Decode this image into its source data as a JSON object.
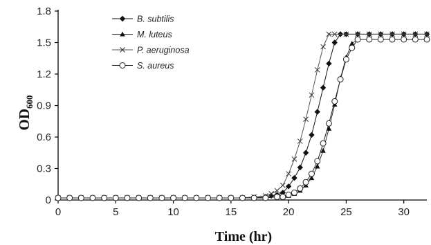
{
  "chart_data": {
    "type": "line",
    "xlabel": "Time (hr)",
    "ylabel_main": "OD",
    "ylabel_sub": "600",
    "xlim": [
      0,
      32
    ],
    "ylim": [
      0,
      1.8
    ],
    "xticks": [
      "0",
      "5",
      "10",
      "15",
      "20",
      "25",
      "30"
    ],
    "yticks": [
      "0",
      "0.3",
      "0.6",
      "0.9",
      "1.2",
      "1.5",
      "1.8"
    ],
    "grid": false,
    "legend_position": "top-left",
    "series": [
      {
        "name": "B. subtilis",
        "marker": "diamond",
        "x": [
          0,
          1,
          2,
          3,
          4,
          5,
          6,
          7,
          8,
          9,
          10,
          11,
          12,
          13,
          14,
          15,
          16,
          17,
          18,
          18.5,
          19,
          19.5,
          20,
          20.5,
          21,
          21.5,
          22,
          22.5,
          23,
          23.5,
          24,
          24.5,
          25,
          26,
          27,
          28,
          29,
          30,
          31,
          32
        ],
        "y": [
          0.02,
          0.02,
          0.02,
          0.02,
          0.02,
          0.02,
          0.02,
          0.02,
          0.02,
          0.02,
          0.02,
          0.02,
          0.02,
          0.02,
          0.02,
          0.02,
          0.02,
          0.02,
          0.03,
          0.04,
          0.05,
          0.07,
          0.13,
          0.21,
          0.31,
          0.45,
          0.62,
          0.84,
          1.07,
          1.3,
          1.5,
          1.58,
          1.58,
          1.58,
          1.58,
          1.58,
          1.58,
          1.58,
          1.58,
          1.58
        ]
      },
      {
        "name": "M. luteus",
        "marker": "triangle",
        "x": [
          0,
          1,
          2,
          3,
          4,
          5,
          6,
          7,
          8,
          9,
          10,
          11,
          12,
          13,
          14,
          15,
          16,
          17,
          18,
          19,
          19.5,
          20,
          20.5,
          21,
          21.5,
          22,
          22.5,
          23,
          23.5,
          24,
          24.5,
          25,
          25.5,
          26,
          27,
          28,
          29,
          30,
          31,
          32
        ],
        "y": [
          0.02,
          0.02,
          0.02,
          0.02,
          0.02,
          0.02,
          0.02,
          0.02,
          0.02,
          0.02,
          0.02,
          0.02,
          0.02,
          0.02,
          0.02,
          0.02,
          0.02,
          0.02,
          0.02,
          0.03,
          0.03,
          0.04,
          0.06,
          0.09,
          0.14,
          0.21,
          0.32,
          0.47,
          0.68,
          0.91,
          1.16,
          1.36,
          1.49,
          1.53,
          1.53,
          1.53,
          1.53,
          1.53,
          1.53,
          1.53
        ]
      },
      {
        "name": "P. aeruginosa",
        "marker": "x",
        "x": [
          0,
          1,
          2,
          3,
          4,
          5,
          6,
          7,
          8,
          9,
          10,
          11,
          12,
          13,
          14,
          15,
          16,
          17,
          18,
          18.5,
          19,
          19.5,
          20,
          20.5,
          21,
          21.5,
          22,
          22.5,
          23,
          23.5,
          24,
          25,
          26,
          27,
          28,
          29,
          30,
          31,
          32
        ],
        "y": [
          0.02,
          0.02,
          0.02,
          0.02,
          0.02,
          0.02,
          0.02,
          0.02,
          0.02,
          0.02,
          0.02,
          0.02,
          0.02,
          0.02,
          0.02,
          0.02,
          0.02,
          0.03,
          0.04,
          0.06,
          0.09,
          0.14,
          0.25,
          0.39,
          0.56,
          0.77,
          1.0,
          1.24,
          1.46,
          1.58,
          1.58,
          1.58,
          1.58,
          1.58,
          1.58,
          1.58,
          1.58,
          1.58,
          1.58
        ]
      },
      {
        "name": "S. aureus",
        "marker": "circle",
        "x": [
          0,
          1,
          2,
          3,
          4,
          5,
          6,
          7,
          8,
          9,
          10,
          11,
          12,
          13,
          14,
          15,
          16,
          17,
          18,
          19,
          19.5,
          20,
          20.5,
          21,
          21.5,
          22,
          22.5,
          23,
          23.5,
          24,
          24.5,
          25,
          25.5,
          26,
          27,
          28,
          29,
          30,
          31,
          32
        ],
        "y": [
          0.02,
          0.02,
          0.02,
          0.02,
          0.02,
          0.02,
          0.02,
          0.02,
          0.02,
          0.02,
          0.02,
          0.02,
          0.02,
          0.02,
          0.02,
          0.02,
          0.02,
          0.02,
          0.02,
          0.03,
          0.03,
          0.05,
          0.07,
          0.11,
          0.17,
          0.25,
          0.37,
          0.54,
          0.73,
          0.94,
          1.15,
          1.34,
          1.45,
          1.53,
          1.53,
          1.53,
          1.53,
          1.53,
          1.53,
          1.53
        ]
      }
    ]
  }
}
